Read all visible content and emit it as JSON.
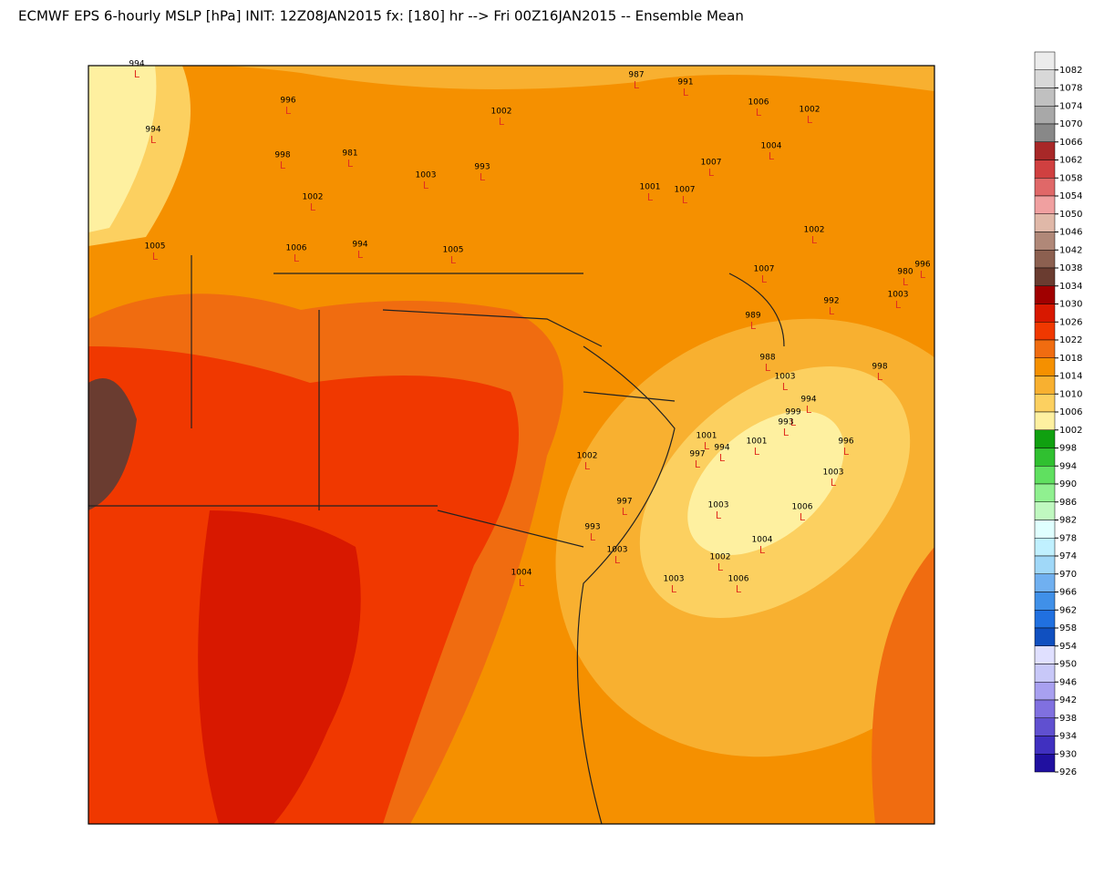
{
  "title": "ECMWF EPS 6-hourly MSLP [hPa] INIT: 12Z08JAN2015 fx: [180] hr --> Fri 00Z16JAN2015 -- Ensemble Mean",
  "colorbar": {
    "labels": [
      1082,
      1078,
      1074,
      1070,
      1066,
      1062,
      1058,
      1054,
      1050,
      1046,
      1042,
      1038,
      1034,
      1030,
      1026,
      1022,
      1018,
      1014,
      1010,
      1006,
      1002,
      998,
      994,
      990,
      986,
      982,
      978,
      974,
      970,
      966,
      962,
      958,
      954,
      950,
      946,
      942,
      938,
      934,
      930,
      926
    ],
    "colors": [
      "#ececec",
      "#d8d8d8",
      "#c0c0c0",
      "#a8a8a8",
      "#888888",
      "#a82828",
      "#d04040",
      "#e06868",
      "#f0a0a0",
      "#e0b8a8",
      "#b08878",
      "#8c6050",
      "#6a3c30",
      "#a00000",
      "#d81800",
      "#f03800",
      "#f06c10",
      "#f59000",
      "#f8b030",
      "#fcd060",
      "#fef0a0",
      "#10a010",
      "#30c030",
      "#60e060",
      "#90f090",
      "#c0f8c0",
      "#e0ffff",
      "#c0f0ff",
      "#a0d8f8",
      "#70b0f0",
      "#4090e8",
      "#2070e0",
      "#1050c0",
      "#e0e0ff",
      "#c8c8f8",
      "#a8a0f0",
      "#8070e0",
      "#6050d0",
      "#4030c0",
      "#2010a0"
    ]
  },
  "low_symbol": "L",
  "lows": [
    994,
    994,
    996,
    998,
    981,
    1003,
    1002,
    1005,
    1006,
    994,
    1005,
    1002,
    993,
    987,
    991,
    1006,
    1002,
    1004,
    1007,
    1001,
    1007,
    1002,
    1007,
    980,
    996,
    1003,
    992,
    989,
    988,
    1003,
    998,
    994,
    999,
    993,
    1001,
    997,
    994,
    996,
    1003,
    1006,
    1003,
    1004,
    1002,
    1006,
    1003,
    1002,
    997,
    993,
    1003,
    1004,
    1001
  ]
}
